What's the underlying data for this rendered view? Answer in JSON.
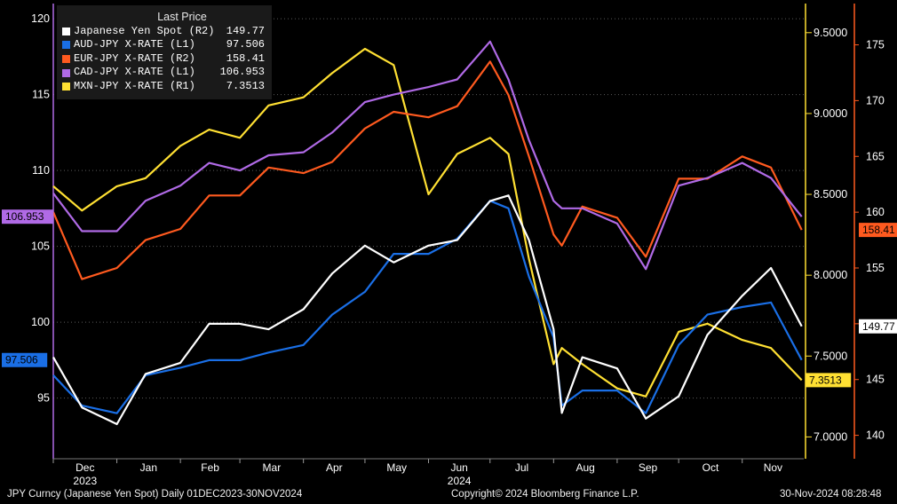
{
  "chart_data": {
    "type": "line",
    "legend_title": "Last Price",
    "axes": {
      "L1": {
        "ylim": [
          91,
          121
        ],
        "ticks": [
          "95",
          "100",
          "105",
          "110",
          "115",
          "120"
        ]
      },
      "R1": {
        "ylim": [
          6.865,
          9.68
        ],
        "ticks": [
          "7.0000",
          "7.5000",
          "8.0000",
          "8.5000",
          "9.0000",
          "9.5000"
        ]
      },
      "R2": {
        "ylim": [
          137.9,
          178.7
        ],
        "ticks": [
          "140",
          "145",
          "150",
          "155",
          "160",
          "165",
          "170",
          "175"
        ]
      }
    },
    "months": [
      "Dec",
      "Jan",
      "Feb",
      "Mar",
      "Apr",
      "May",
      "Jun",
      "Jul",
      "Aug",
      "Sep",
      "Oct",
      "Nov"
    ],
    "years": [
      {
        "label": "2023",
        "month": 0
      },
      {
        "label": "2024",
        "month": 6
      }
    ],
    "x": [
      "2023-12-01",
      "2023-12-15",
      "2024-01-01",
      "2024-01-15",
      "2024-02-01",
      "2024-02-15",
      "2024-03-01",
      "2024-03-15",
      "2024-04-01",
      "2024-04-15",
      "2024-05-01",
      "2024-05-15",
      "2024-06-01",
      "2024-06-15",
      "2024-07-01",
      "2024-07-10",
      "2024-07-20",
      "2024-08-01",
      "2024-08-05",
      "2024-08-15",
      "2024-09-01",
      "2024-09-15",
      "2024-10-01",
      "2024-10-15",
      "2024-11-01",
      "2024-11-15",
      "2024-11-30"
    ],
    "series": [
      {
        "name": "Japanese Yen Spot",
        "axis_tag": "(R2)",
        "last": "149.77",
        "color": "#ffffff",
        "axis": "R2",
        "values": [
          147.0,
          142.5,
          141.0,
          145.5,
          146.5,
          150.0,
          150.0,
          149.5,
          151.3,
          154.5,
          157.0,
          155.5,
          157.0,
          157.5,
          161.0,
          161.5,
          157.5,
          149.5,
          142.0,
          147.0,
          146.0,
          141.5,
          143.5,
          149.0,
          152.5,
          155.0,
          149.77
        ]
      },
      {
        "name": "AUD-JPY X-RATE",
        "axis_tag": "(L1)",
        "last": "97.506",
        "color": "#1a6fe6",
        "axis": "L1",
        "values": [
          96.5,
          94.5,
          94.0,
          96.5,
          97.0,
          97.5,
          97.5,
          98.0,
          98.5,
          100.5,
          102.0,
          104.5,
          104.5,
          105.5,
          108.0,
          107.5,
          103.0,
          99.0,
          94.5,
          95.5,
          95.5,
          94.0,
          98.5,
          100.5,
          101.0,
          101.3,
          97.506
        ]
      },
      {
        "name": "EUR-JPY X-RATE",
        "axis_tag": "(R2)",
        "last": "158.41",
        "color": "#ff5a1f",
        "axis": "R2",
        "values": [
          160.0,
          154.0,
          155.0,
          157.5,
          158.5,
          161.5,
          161.5,
          164.0,
          163.5,
          164.5,
          167.5,
          169.0,
          168.5,
          169.5,
          173.5,
          170.5,
          165.0,
          158.0,
          157.0,
          160.5,
          159.5,
          156.0,
          163.0,
          163.0,
          165.0,
          164.0,
          158.41
        ]
      },
      {
        "name": "CAD-JPY X-RATE",
        "axis_tag": "(L1)",
        "last": "106.953",
        "color": "#b06ae6",
        "axis": "L1",
        "values": [
          108.5,
          106.0,
          106.0,
          108.0,
          109.0,
          110.5,
          110.0,
          111.0,
          111.2,
          112.5,
          114.5,
          115.0,
          115.5,
          116.0,
          118.5,
          116.0,
          112.0,
          108.0,
          107.5,
          107.5,
          106.5,
          103.5,
          109.0,
          109.5,
          110.5,
          109.5,
          106.953
        ]
      },
      {
        "name": "MXN-JPY X-RATE",
        "axis_tag": "(R1)",
        "last": "7.3513",
        "color": "#ffe033",
        "axis": "R1",
        "values": [
          8.55,
          8.4,
          8.55,
          8.6,
          8.8,
          8.9,
          8.85,
          9.05,
          9.1,
          9.25,
          9.4,
          9.3,
          8.5,
          8.75,
          8.85,
          8.75,
          8.1,
          7.45,
          7.55,
          7.45,
          7.3,
          7.25,
          7.65,
          7.7,
          7.6,
          7.55,
          7.3513
        ]
      }
    ]
  },
  "footer": {
    "left": "JPY Curncy (Japanese Yen Spot)  Daily 01DEC2023-30NOV2024",
    "center": "Copyright© 2024 Bloomberg Finance L.P.",
    "right": "30-Nov-2024 08:28:48"
  }
}
